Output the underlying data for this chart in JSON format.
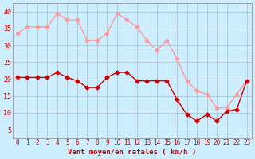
{
  "hours": [
    0,
    1,
    2,
    3,
    4,
    5,
    6,
    7,
    8,
    9,
    10,
    11,
    12,
    13,
    14,
    15,
    16,
    17,
    18,
    19,
    20,
    21,
    22,
    23
  ],
  "wind_avg": [
    20.5,
    20.5,
    20.5,
    20.5,
    22,
    20.5,
    19.5,
    17.5,
    17.5,
    20.5,
    22,
    22,
    19.5,
    19.5,
    19.5,
    19.5,
    14,
    9.5,
    7.5,
    9.5,
    7.5,
    10.5,
    11,
    19.5
  ],
  "wind_gust": [
    33.5,
    35.5,
    35.5,
    35.5,
    39.5,
    37.5,
    37.5,
    31.5,
    31.5,
    33.5,
    39.5,
    37.5,
    35.5,
    31.5,
    28.5,
    31.5,
    26,
    19.5,
    16.5,
    15.5,
    11.5,
    11.5,
    15.5,
    19.5
  ],
  "color_avg": "#cc0000",
  "color_gust": "#ff9999",
  "background": "#cceeff",
  "grid_color": "#aabbcc",
  "xlabel": "Vent moyen/en rafales ( km/h )",
  "xlabel_color": "#cc0000",
  "tick_color": "#cc0000",
  "ylim": [
    2.5,
    42.5
  ],
  "yticks": [
    5,
    10,
    15,
    20,
    25,
    30,
    35,
    40
  ],
  "title_color": "#cc0000"
}
